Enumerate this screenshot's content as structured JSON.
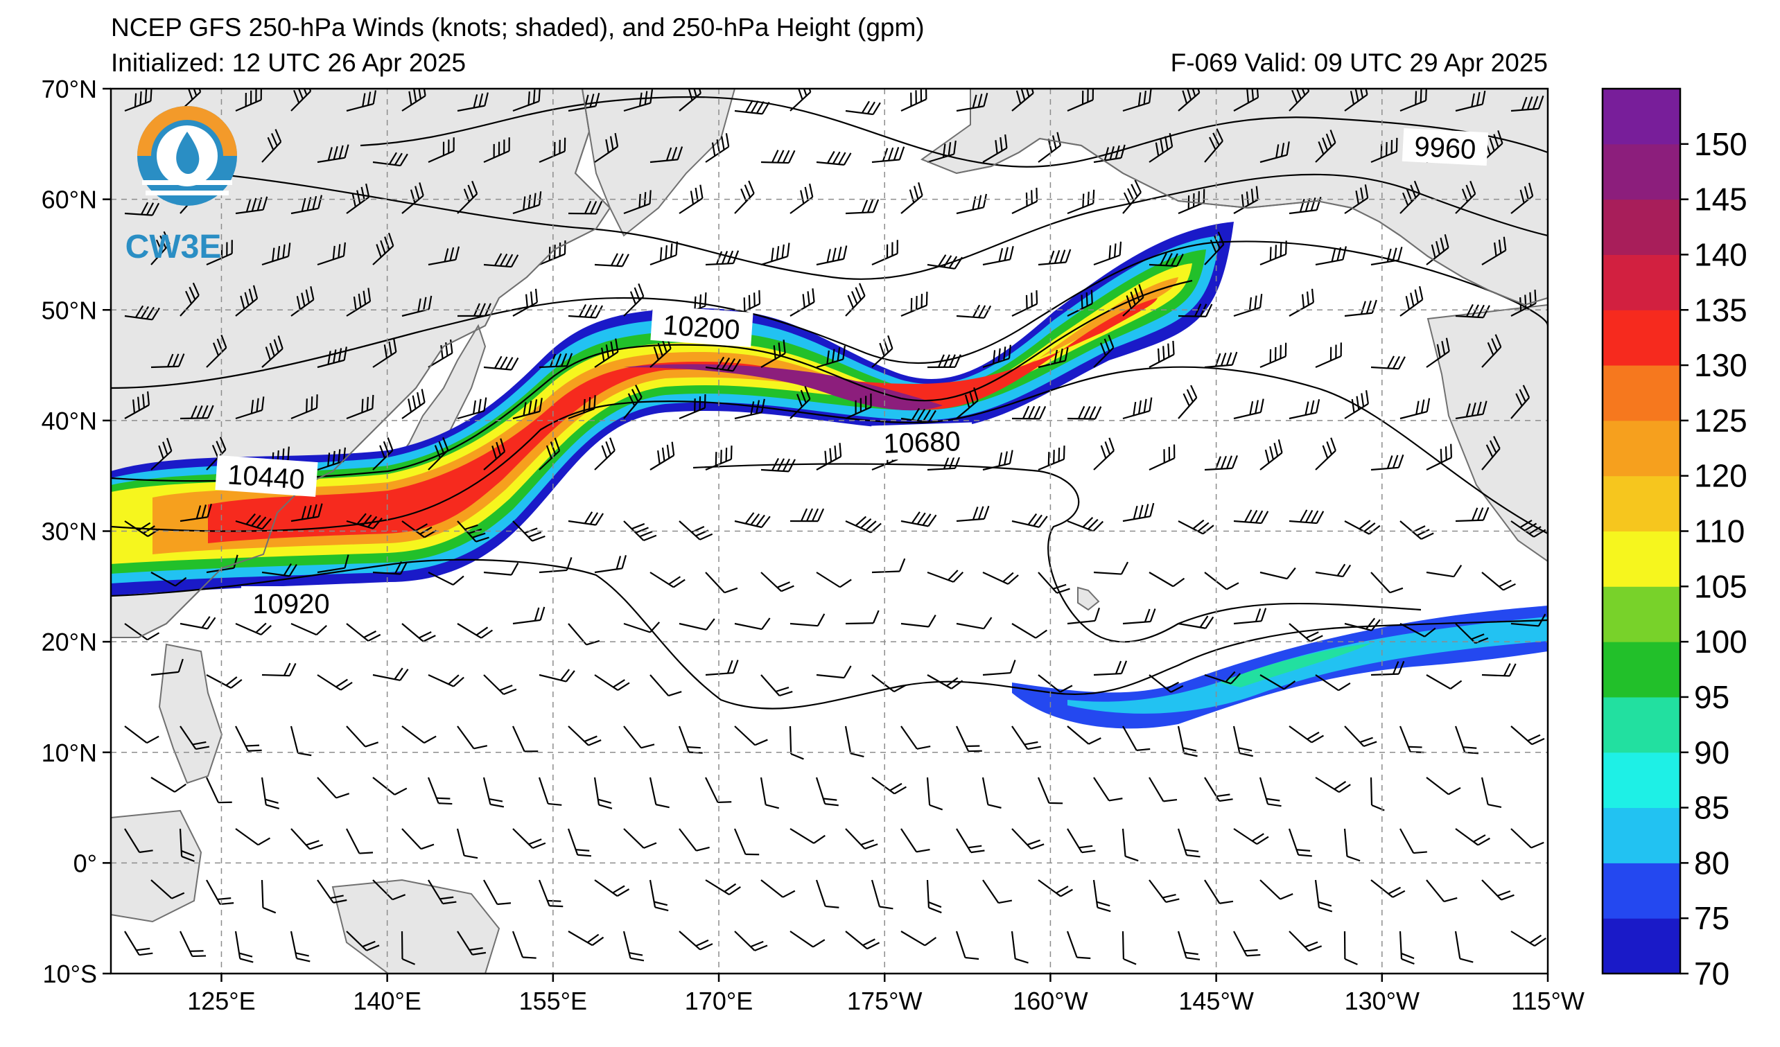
{
  "titles": {
    "main": "NCEP GFS 250-hPa Winds (knots; shaded), and 250-hPa Height (gpm)",
    "initialized": "Initialized: 12 UTC 26 Apr 2025",
    "valid": "F-069  Valid: 09 UTC 29 Apr 2025"
  },
  "logo": {
    "text": "CW3E",
    "icon": "cw3e-logo-icon"
  },
  "axes": {
    "lat_labels": [
      "70°N",
      "60°N",
      "50°N",
      "40°N",
      "30°N",
      "20°N",
      "10°N",
      "0°",
      "10°S"
    ],
    "lon_labels": [
      "125°E",
      "140°E",
      "155°E",
      "170°E",
      "175°W",
      "160°W",
      "145°W",
      "130°W",
      "115°W"
    ],
    "lat_range": [
      -10,
      70
    ],
    "lon_range": [
      115,
      245
    ],
    "grid": "dashed"
  },
  "height_contour_labels": [
    "9960",
    "10200",
    "10440",
    "10680",
    "10920"
  ],
  "colorbar": {
    "levels": [
      "70",
      "75",
      "80",
      "85",
      "90",
      "95",
      "100",
      "105",
      "110",
      "120",
      "125",
      "130",
      "135",
      "140",
      "145",
      "150"
    ],
    "colors": [
      "#1a1ac8",
      "#2448f0",
      "#22c2f2",
      "#1ef0e6",
      "#22e0a0",
      "#22c02a",
      "#78d22a",
      "#f6f61e",
      "#f6c61e",
      "#f6a01e",
      "#f6781e",
      "#f62a1e",
      "#d22040",
      "#a81e5a",
      "#8c1e7c",
      "#781e9a"
    ],
    "top_color": "#781e9a"
  },
  "colors": {
    "land": "#e6e6e6",
    "coast": "#707070",
    "grid": "#8c8c8c"
  }
}
